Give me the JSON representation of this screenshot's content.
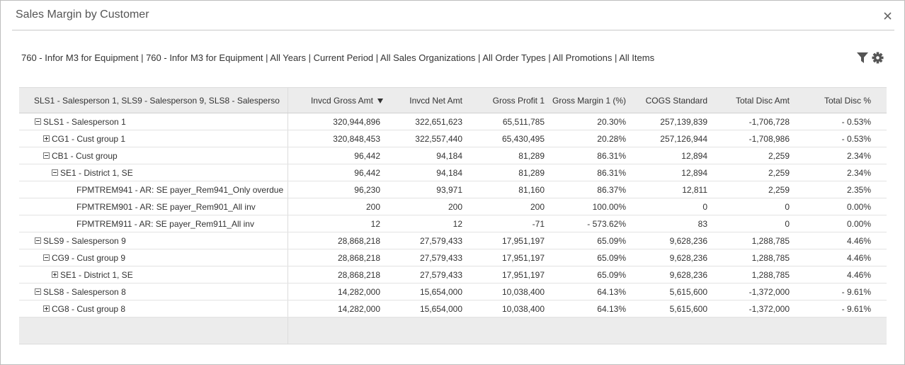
{
  "header": {
    "title": "Sales Margin by Customer"
  },
  "filter_bar": "760 - Infor M3 for Equipment | 760 - Infor M3 for Equipment | All Years | Current Period | All Sales Organizations | All Order Types | All Promotions | All Items",
  "table": {
    "columns": [
      "SLS1 - Salesperson 1, SLS9 - Salesperson 9, SLS8 - Salesperso",
      "Invcd Gross Amt",
      "Invcd Net Amt",
      "Gross Profit 1",
      "Gross Margin 1 (%)",
      "COGS Standard",
      "Total Disc Amt",
      "Total Disc %"
    ],
    "sorted_column": 1,
    "rows": [
      {
        "label": "SLS1 - Salesperson 1",
        "expanded": true,
        "cells": [
          "320,944,896",
          "322,651,623",
          "65,511,785",
          "20.30%",
          "257,139,839",
          "-1,706,728",
          "- 0.53%"
        ],
        "children": [
          {
            "label": "CG1 - Cust group 1",
            "expanded": false,
            "cells": [
              "320,848,453",
              "322,557,440",
              "65,430,495",
              "20.28%",
              "257,126,944",
              "-1,708,986",
              "- 0.53%"
            ]
          },
          {
            "label": "CB1 - Cust group",
            "expanded": true,
            "cells": [
              "96,442",
              "94,184",
              "81,289",
              "86.31%",
              "12,894",
              "2,259",
              "2.34%"
            ],
            "children": [
              {
                "label": "SE1 - District 1, SE",
                "expanded": true,
                "cells": [
                  "96,442",
                  "94,184",
                  "81,289",
                  "86.31%",
                  "12,894",
                  "2,259",
                  "2.34%"
                ],
                "children": [
                  {
                    "label": "FPMTREM941 - AR: SE payer_Rem941_Only overdue",
                    "cells": [
                      "96,230",
                      "93,971",
                      "81,160",
                      "86.37%",
                      "12,811",
                      "2,259",
                      "2.35%"
                    ]
                  },
                  {
                    "label": "FPMTREM901 - AR: SE payer_Rem901_All inv",
                    "cells": [
                      "200",
                      "200",
                      "200",
                      "100.00%",
                      "0",
                      "0",
                      "0.00%"
                    ]
                  },
                  {
                    "label": "FPMTREM911 - AR: SE payer_Rem911_All inv",
                    "cells": [
                      "12",
                      "12",
                      "-71",
                      "- 573.62%",
                      "83",
                      "0",
                      "0.00%"
                    ]
                  }
                ]
              }
            ]
          }
        ]
      },
      {
        "label": "SLS9 - Salesperson 9",
        "expanded": true,
        "cells": [
          "28,868,218",
          "27,579,433",
          "17,951,197",
          "65.09%",
          "9,628,236",
          "1,288,785",
          "4.46%"
        ],
        "children": [
          {
            "label": "CG9 - Cust group 9",
            "expanded": true,
            "cells": [
              "28,868,218",
              "27,579,433",
              "17,951,197",
              "65.09%",
              "9,628,236",
              "1,288,785",
              "4.46%"
            ],
            "children": [
              {
                "label": "SE1 - District 1, SE",
                "expanded": false,
                "cells": [
                  "28,868,218",
                  "27,579,433",
                  "17,951,197",
                  "65.09%",
                  "9,628,236",
                  "1,288,785",
                  "4.46%"
                ]
              }
            ]
          }
        ]
      },
      {
        "label": "SLS8 - Salesperson 8",
        "expanded": true,
        "cells": [
          "14,282,000",
          "15,654,000",
          "10,038,400",
          "64.13%",
          "5,615,600",
          "-1,372,000",
          "- 9.61%"
        ],
        "children": [
          {
            "label": "CG8 - Cust group 8",
            "expanded": false,
            "cells": [
              "14,282,000",
              "15,654,000",
              "10,038,400",
              "64.13%",
              "5,615,600",
              "-1,372,000",
              "- 9.61%"
            ]
          }
        ]
      }
    ]
  }
}
